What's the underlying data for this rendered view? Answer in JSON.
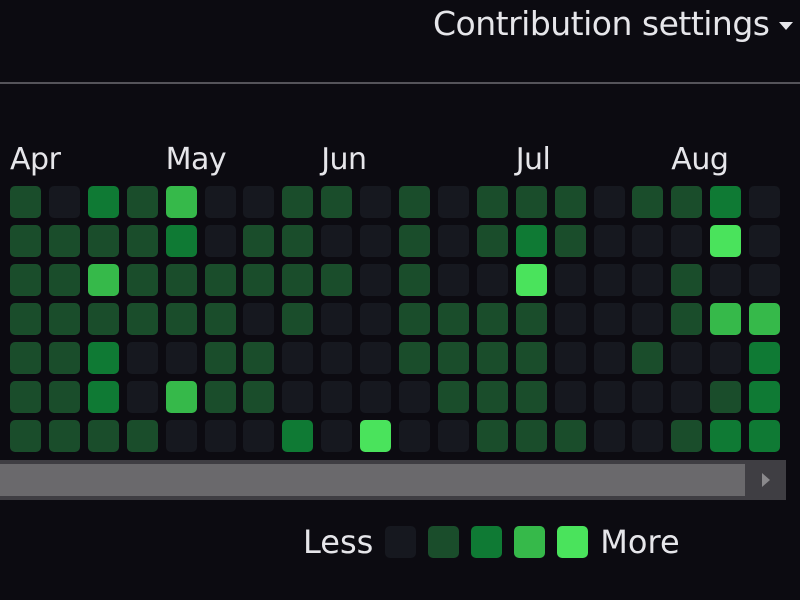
{
  "header": {
    "settings_label": "Contribution settings"
  },
  "months": [
    {
      "label": "Apr",
      "week": 0
    },
    {
      "label": "May",
      "week": 4
    },
    {
      "label": "Jun",
      "week": 8
    },
    {
      "label": "Jul",
      "week": 13
    },
    {
      "label": "Aug",
      "week": 17
    }
  ],
  "colors": [
    "#16181f",
    "#1a4d2b",
    "#0f7a34",
    "#36b94a",
    "#4ae35c"
  ],
  "levels": [
    [
      1,
      0,
      2,
      1,
      3,
      0,
      0,
      1,
      1,
      0,
      1,
      0,
      1,
      1,
      1,
      0,
      1,
      1,
      2,
      0
    ],
    [
      1,
      1,
      1,
      1,
      2,
      0,
      1,
      1,
      0,
      0,
      1,
      0,
      1,
      2,
      1,
      0,
      0,
      0,
      4,
      0
    ],
    [
      1,
      1,
      3,
      1,
      1,
      1,
      1,
      1,
      1,
      0,
      1,
      0,
      0,
      4,
      0,
      0,
      0,
      1,
      0,
      0
    ],
    [
      1,
      1,
      1,
      1,
      1,
      1,
      0,
      1,
      0,
      0,
      1,
      1,
      1,
      1,
      0,
      0,
      0,
      1,
      3,
      3
    ],
    [
      1,
      1,
      2,
      0,
      0,
      1,
      1,
      0,
      0,
      0,
      1,
      1,
      1,
      1,
      0,
      0,
      1,
      0,
      0,
      2
    ],
    [
      1,
      1,
      2,
      0,
      3,
      1,
      1,
      0,
      0,
      0,
      0,
      1,
      1,
      1,
      0,
      0,
      0,
      0,
      1,
      2
    ],
    [
      1,
      1,
      1,
      1,
      0,
      0,
      0,
      2,
      0,
      4,
      0,
      0,
      1,
      1,
      1,
      0,
      0,
      1,
      2,
      2
    ]
  ],
  "legend": {
    "less": "Less",
    "more": "More"
  }
}
